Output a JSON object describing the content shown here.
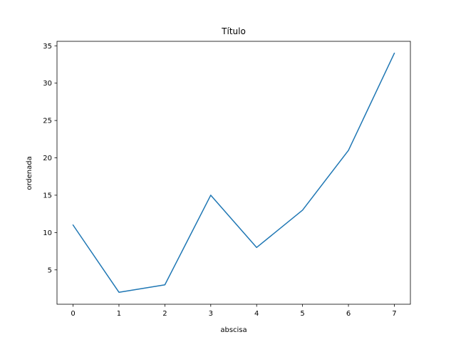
{
  "chart_data": {
    "type": "line",
    "title": "Título",
    "xlabel": "abscisa",
    "ylabel": "ordenada",
    "x": [
      0,
      1,
      2,
      3,
      4,
      5,
      6,
      7
    ],
    "series": [
      {
        "values": [
          11,
          2,
          3,
          15,
          8,
          13,
          21,
          34
        ],
        "color": "#1f77b4"
      }
    ],
    "xlim": [
      -0.35,
      7.35
    ],
    "ylim": [
      0.4,
      35.6
    ],
    "xticks": [
      0,
      1,
      2,
      3,
      4,
      5,
      6,
      7
    ],
    "yticks": [
      5,
      10,
      15,
      20,
      25,
      30,
      35
    ],
    "grid": false,
    "legend": false
  }
}
